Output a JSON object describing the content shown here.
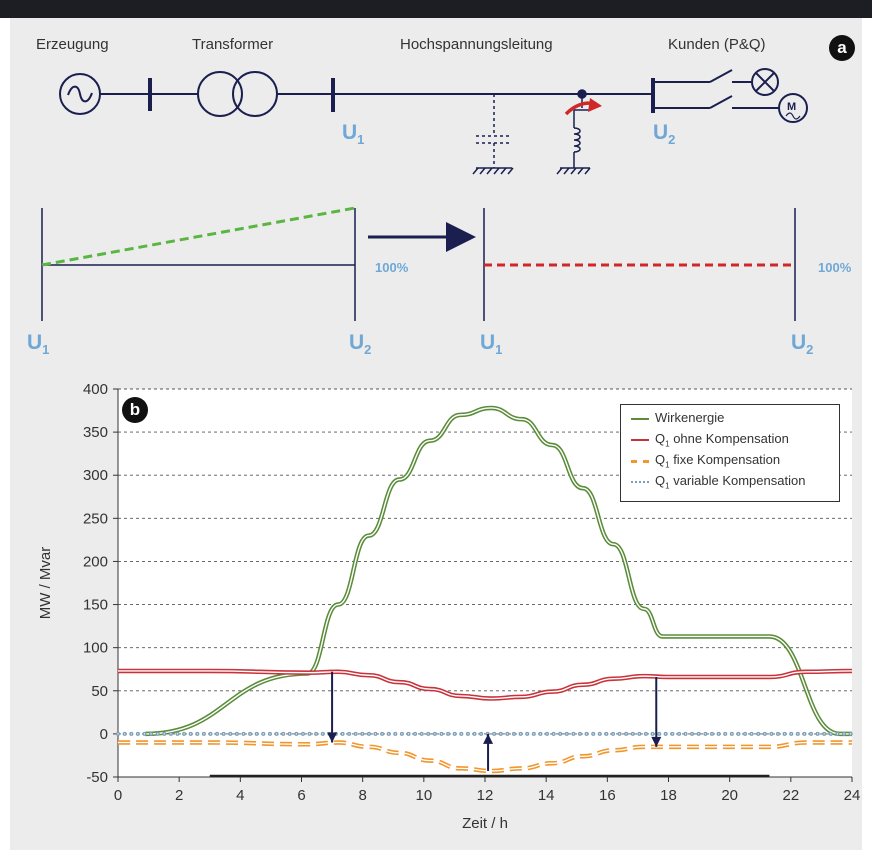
{
  "panel_a": {
    "badge": "a",
    "labels": {
      "generation": "Erzeugung",
      "transformer": "Transformer",
      "line": "Hochspannungsleitung",
      "customers": "Kunden (P&Q)"
    },
    "u1": "U",
    "u1_sub": "1",
    "u2": "U",
    "u2_sub": "2",
    "percent_left": "100%",
    "percent_right": "100%",
    "motor_symbol": "M"
  },
  "panel_b": {
    "badge": "b"
  },
  "chart_data": {
    "type": "line",
    "xlabel": "Zeit / h",
    "ylabel": "MW / Mvar",
    "xlim": [
      0,
      24
    ],
    "ylim": [
      -50,
      400
    ],
    "xticks": [
      "0",
      "2",
      "4",
      "6",
      "8",
      "10",
      "12",
      "14",
      "16",
      "18",
      "20",
      "22",
      "24"
    ],
    "yticks": [
      "-50",
      "0",
      "50",
      "100",
      "150",
      "200",
      "250",
      "300",
      "350",
      "400"
    ],
    "grid": "horizontal dashed",
    "legend_position": "top-right",
    "series": [
      {
        "name": "Wirkenergie",
        "color": "#5b8c3a",
        "style": "double-solid",
        "x": [
          0.9,
          6.2,
          7.2,
          8.2,
          9.2,
          10.2,
          11.2,
          12.2,
          13.2,
          14.2,
          15.2,
          16.2,
          17.2,
          17.8,
          21.3,
          23.6,
          24
        ],
        "y": [
          0,
          70,
          150,
          230,
          295,
          340,
          370,
          378,
          365,
          335,
          285,
          220,
          145,
          113,
          113,
          0,
          0
        ]
      },
      {
        "name": "Q1 ohne Kompensation",
        "name_main": "Q",
        "name_sub": "1",
        "name_rest": " ohne Kompensation",
        "color": "#c8323a",
        "style": "double-solid",
        "x": [
          0,
          3,
          6.2,
          7.2,
          8.2,
          9.2,
          10.2,
          11.2,
          12.2,
          13.2,
          14.2,
          15.2,
          16.2,
          17.2,
          18,
          21.3,
          22.5,
          24
        ],
        "y": [
          73,
          73,
          71,
          72,
          68,
          60,
          52,
          44,
          41,
          43,
          49,
          57,
          64,
          67,
          66,
          66,
          72,
          73
        ]
      },
      {
        "name": "Q1 fixe Kompensation",
        "name_main": "Q",
        "name_sub": "1",
        "name_rest": " fixe Kompensation",
        "color": "#f0962d",
        "style": "double-dashed",
        "x": [
          0,
          3,
          6.2,
          7.2,
          8.2,
          9.2,
          10.2,
          11.2,
          12.2,
          13.2,
          14.2,
          15.2,
          16.2,
          17.2,
          18,
          21.3,
          22.5,
          24
        ],
        "y": [
          -10,
          -10,
          -12,
          -10,
          -15,
          -22,
          -31,
          -40,
          -43,
          -40,
          -34,
          -26,
          -19,
          -15,
          -15,
          -15,
          -10,
          -10
        ]
      },
      {
        "name": "Q1 variable Kompensation",
        "name_main": "Q",
        "name_sub": "1",
        "name_rest": " variable Kompensation",
        "color": "#7c9fb8",
        "style": "dotted",
        "x": [
          0,
          24
        ],
        "y": [
          0,
          0
        ]
      }
    ],
    "annotations": [
      {
        "type": "arrow-down",
        "x": 7,
        "from": 72,
        "to": -10
      },
      {
        "type": "arrow-up",
        "x": 12.1,
        "from": -43,
        "to": 0
      },
      {
        "type": "arrow-down",
        "x": 17.6,
        "from": 66,
        "to": -15
      }
    ]
  }
}
